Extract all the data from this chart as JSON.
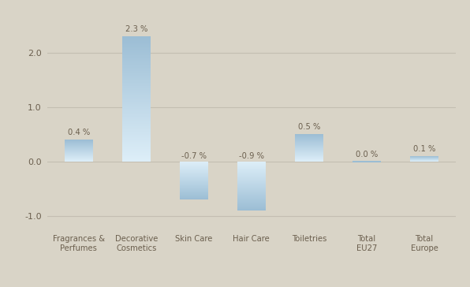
{
  "categories": [
    "Fragrances &\nPerfumes",
    "Decorative\nCosmetics",
    "Skin Care",
    "Hair Care",
    "Toiletries",
    "Total\nEU27",
    "Total\nEurope"
  ],
  "values": [
    0.4,
    2.3,
    -0.7,
    -0.9,
    0.5,
    0.0,
    0.1
  ],
  "labels": [
    "0.4 %",
    "2.3 %",
    "-0.7 %",
    "-0.9 %",
    "0.5 %",
    "0.0 %",
    "0.1 %"
  ],
  "ylim": [
    -1.25,
    2.7
  ],
  "yticks": [
    -1.0,
    0.0,
    1.0,
    2.0
  ],
  "ytick_labels": [
    "-1.0",
    "0.0",
    "1.0",
    "2.0"
  ],
  "bar_color_dark": "#9bbdd4",
  "bar_color_light": "#ddeef8",
  "background_color": "#d9d4c7",
  "grid_color": "#c4beb2",
  "bar_width": 0.5,
  "label_fontsize": 7.2,
  "tick_fontsize": 8,
  "cat_fontsize": 7.2,
  "text_color": "#6b5f4e"
}
